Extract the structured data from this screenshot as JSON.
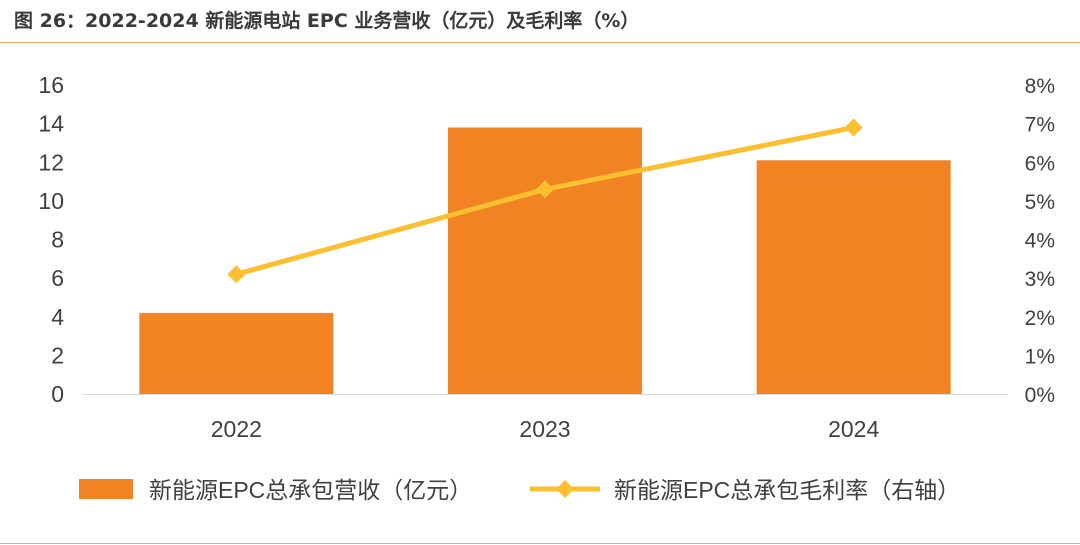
{
  "figure": {
    "title": "图 26：2022-2024 新能源电站 EPC 业务营收（亿元）及毛利率（%）"
  },
  "chart_data": {
    "type": "bar",
    "title": "图 26：2022-2024 新能源电站 EPC 业务营收（亿元）及毛利率（%）",
    "categories": [
      "2022",
      "2023",
      "2024"
    ],
    "series": [
      {
        "name": "新能源EPC总承包营收（亿元）",
        "type": "bar",
        "axis": "left",
        "color": "#f28322",
        "values": [
          4.2,
          13.8,
          12.1
        ]
      },
      {
        "name": "新能源EPC总承包毛利率（右轴）",
        "type": "line",
        "marker": "diamond",
        "axis": "right",
        "color": "#fbbf2f",
        "values": [
          3.1,
          5.3,
          6.9
        ]
      }
    ],
    "y_left": {
      "ylim": [
        0,
        16
      ],
      "ticks": [
        0,
        2,
        4,
        6,
        8,
        10,
        12,
        14,
        16
      ],
      "tick_labels": [
        "0",
        "2",
        "4",
        "6",
        "8",
        "10",
        "12",
        "14",
        "16"
      ]
    },
    "y_right": {
      "ylim": [
        0,
        8
      ],
      "ticks": [
        0,
        1,
        2,
        3,
        4,
        5,
        6,
        7,
        8
      ],
      "tick_labels": [
        "0%",
        "1%",
        "2%",
        "3%",
        "4%",
        "5%",
        "6%",
        "7%",
        "8%"
      ]
    },
    "xlabel": "",
    "ylabel": "",
    "grid": false,
    "legend_position": "bottom"
  },
  "colors": {
    "accent_rule": "#f0a868",
    "bar": "#f28322",
    "line": "#fbbf2f",
    "axis_text": "#404040",
    "axis_line": "#d9d9d9"
  }
}
